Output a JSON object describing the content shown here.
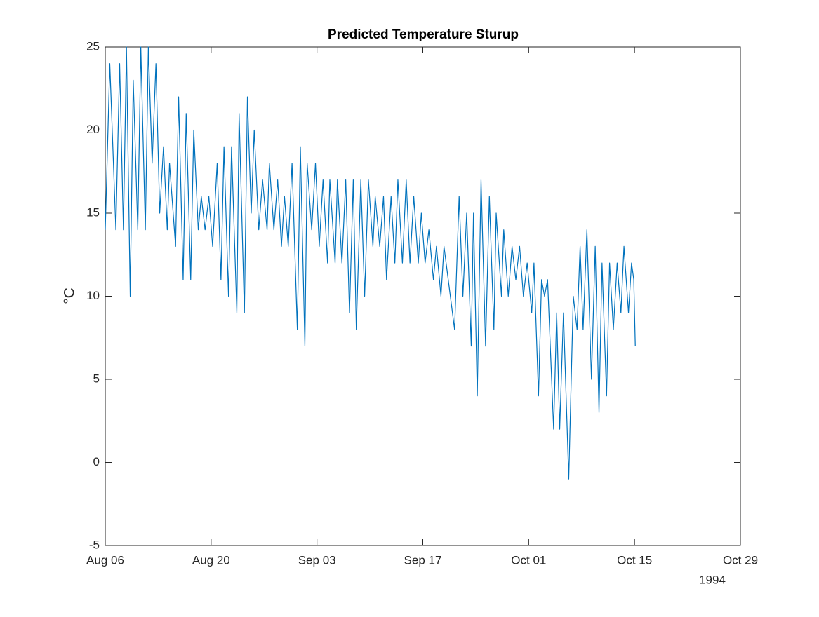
{
  "chart_data": {
    "type": "line",
    "title": "Predicted Temperature Sturup",
    "y_label": "°C",
    "x_year_label": "1994",
    "x": [
      0,
      0.6,
      1.4,
      1.9,
      2.4,
      2.8,
      3.3,
      3.7,
      4.3,
      4.7,
      5.3,
      5.7,
      6.2,
      6.7,
      7.2,
      7.7,
      8.2,
      8.5,
      9.3,
      9.7,
      10.3,
      10.7,
      11.3,
      11.7,
      12.3,
      12.7,
      13.2,
      13.7,
      14.2,
      14.8,
      15.3,
      15.7,
      16.3,
      16.7,
      17.4,
      17.7,
      18.4,
      18.8,
      19.3,
      19.7,
      20.3,
      20.8,
      21.4,
      21.7,
      22.3,
      22.8,
      23.3,
      23.7,
      24.2,
      24.7,
      25.4,
      25.8,
      26.4,
      26.7,
      27.3,
      27.8,
      28.3,
      28.8,
      29.4,
      29.7,
      30.4,
      30.7,
      31.3,
      31.8,
      32.3,
      32.8,
      33.2,
      33.8,
      34.3,
      34.8,
      35.4,
      35.7,
      36.3,
      36.8,
      37.2,
      37.8,
      38.3,
      38.7,
      39.3,
      39.8,
      40.3,
      40.8,
      41.4,
      41.8,
      42.3,
      42.8,
      43.4,
      43.8,
      44.4,
      44.8,
      46.2,
      46.8,
      47.3,
      47.8,
      48.4,
      48.7,
      49.2,
      49.7,
      50.3,
      50.8,
      51.4,
      51.7,
      52.4,
      52.7,
      53.3,
      53.8,
      54.3,
      54.8,
      55.3,
      55.8,
      56.4,
      56.7,
      57.3,
      57.7,
      58.1,
      58.5,
      59.3,
      59.7,
      60.1,
      60.6,
      61.3,
      61.9,
      62.4,
      62.8,
      63.2,
      63.7,
      64.3,
      64.8,
      65.3,
      65.7,
      66.3,
      66.7,
      67.2,
      67.7,
      68.2,
      68.6,
      69.2,
      69.6,
      69.9,
      70.1
    ],
    "values": [
      14,
      24,
      14,
      24,
      14,
      25,
      10,
      23,
      14,
      25,
      14,
      25,
      18,
      24,
      15,
      19,
      14,
      18,
      13,
      22,
      11,
      21,
      11,
      20,
      14,
      16,
      14,
      16,
      13,
      18,
      11,
      19,
      10,
      19,
      9,
      21,
      9,
      22,
      15,
      20,
      14,
      17,
      14,
      18,
      14,
      17,
      13,
      16,
      13,
      18,
      8,
      19,
      7,
      18,
      14,
      18,
      13,
      17,
      12,
      17,
      12,
      17,
      12,
      17,
      9,
      17,
      8,
      17,
      10,
      17,
      13,
      16,
      13,
      16,
      11,
      16,
      12,
      17,
      12,
      17,
      12,
      16,
      12,
      15,
      12,
      14,
      11,
      13,
      10,
      13,
      8,
      16,
      10,
      15,
      7,
      15,
      4,
      17,
      7,
      16,
      8,
      15,
      10,
      14,
      10,
      13,
      11,
      13,
      10,
      12,
      9,
      12,
      4,
      11,
      10,
      11,
      2,
      9,
      2,
      9,
      -1,
      10,
      8,
      13,
      8,
      14,
      5,
      13,
      3,
      12,
      4,
      12,
      8,
      12,
      9,
      13,
      9,
      12,
      11,
      7
    ],
    "color": "#0072bd",
    "xlim": [
      0,
      84
    ],
    "xticks": [
      {
        "value": 0,
        "label": "Aug 06"
      },
      {
        "value": 14,
        "label": "Aug 20"
      },
      {
        "value": 28,
        "label": "Sep 03"
      },
      {
        "value": 42,
        "label": "Sep 17"
      },
      {
        "value": 56,
        "label": "Oct 01"
      },
      {
        "value": 70,
        "label": "Oct 15"
      },
      {
        "value": 84,
        "label": "Oct 29"
      }
    ],
    "ylim": [
      -5,
      25
    ],
    "yticks": [
      -5,
      0,
      5,
      10,
      15,
      20,
      25
    ],
    "grid": false
  }
}
